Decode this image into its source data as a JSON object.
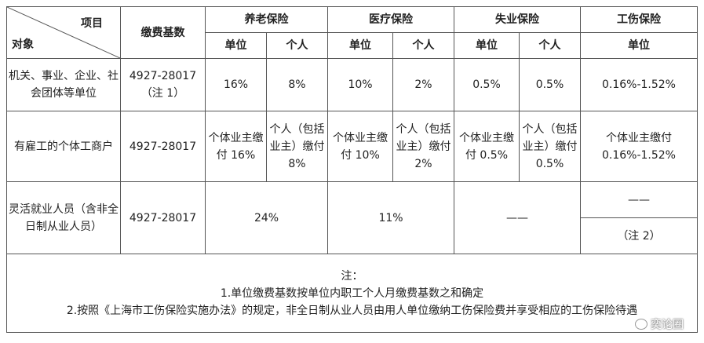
{
  "header": {
    "item_label": "项目",
    "object_label": "对象",
    "base_label": "缴费基数",
    "pension": "养老保险",
    "medical": "医疗保险",
    "unemployment": "失业保险",
    "injury": "工伤保险",
    "unit": "单位",
    "personal": "个人"
  },
  "rows": [
    {
      "object": "机关、事业、企业、社会团体等单位",
      "base_line1": "4927-28017",
      "base_line2": "（注 1）",
      "pension_unit": "16%",
      "pension_personal": "8%",
      "medical_unit": "10%",
      "medical_personal": "2%",
      "unemp_unit": "0.5%",
      "unemp_personal": "0.5%",
      "injury_unit": "0.16%-1.52%"
    },
    {
      "object": "有雇工的个体工商户",
      "base": "4927-28017",
      "pension_unit": "个体业主缴付 16%",
      "pension_personal": "个人（包括业主）缴付 8%",
      "medical_unit": "个体业主缴付 10%",
      "medical_personal": "个人（包括业主）缴付 2%",
      "unemp_unit": "个体业主缴付 0.5%",
      "unemp_personal": "个人（包括业主）缴付 0.5%",
      "injury_unit": "个体业主缴付 0.16%-1.52%"
    },
    {
      "object": "灵活就业人员（含非全日制从业人员）",
      "base": "4927-28017",
      "pension": "24%",
      "medical": "11%",
      "unemp": "——",
      "injury_top": "——",
      "injury_bottom": "（注 2）"
    }
  ],
  "notes": {
    "title": "注：",
    "n1": "1.单位缴费基数按单位内职工个人月缴费基数之和确定",
    "n2": "2.按照《上海市工伤保险实施办法》的规定，非全日制从业人员由用人单位缴纳工伤保险费并享受相应的工伤保险待遇"
  },
  "watermark": {
    "icon": "wechat-bubble-icon",
    "text": "奕论圈"
  }
}
